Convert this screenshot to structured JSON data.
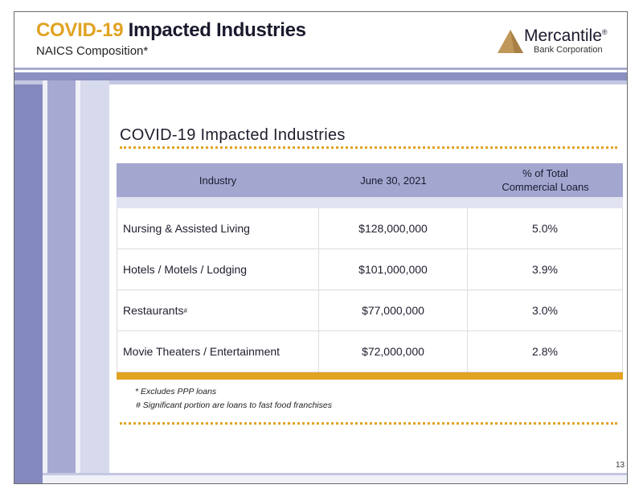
{
  "header": {
    "title_accent": "COVID-19",
    "title_rest": " Impacted Industries",
    "subtitle": "NAICS Composition*"
  },
  "logo": {
    "name": "Mercantile",
    "trademark": "®",
    "tagline": "Bank Corporation",
    "icon": "triangle-logo-icon",
    "colors": {
      "mark": "#c0985a",
      "text": "#1a1a2e"
    }
  },
  "content": {
    "title": "COVID-19 Impacted Industries"
  },
  "table": {
    "headers": {
      "industry": "Industry",
      "date": "June 30, 2021",
      "pct_line1": "% of Total",
      "pct_line2": "Commercial Loans"
    },
    "rows": [
      {
        "industry": "Nursing & Assisted Living",
        "sup": "",
        "amount": "$128,000,000",
        "pct": "5.0%"
      },
      {
        "industry": "Hotels / Motels / Lodging",
        "sup": "",
        "amount": "$101,000,000",
        "pct": "3.9%"
      },
      {
        "industry": "Restaurants",
        "sup": "#",
        "amount": "$77,000,000",
        "pct": "3.0%"
      },
      {
        "industry": "Movie Theaters / Entertainment",
        "sup": "",
        "amount": "$72,000,000",
        "pct": "2.8%"
      }
    ]
  },
  "notes": {
    "note1": "* Excludes PPP loans",
    "note2": "# Significant portion are loans to fast food franchises"
  },
  "page_number": "13",
  "colors": {
    "accent": "#e0a322",
    "header_fill": "#a3a7d0",
    "side_bar": "#8489bd"
  }
}
